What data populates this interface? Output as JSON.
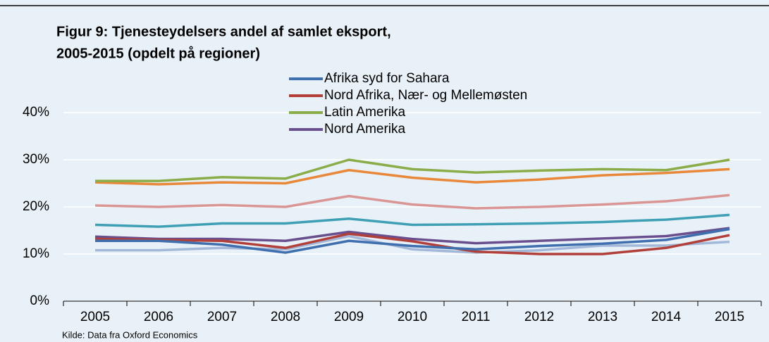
{
  "chart_data": {
    "type": "line",
    "title": [
      "Figur 9: Tjenesteydelsers andel af samlet eksport,",
      "2005-2015 (opdelt på regioner)"
    ],
    "source": "Kilde: Data fra Oxford Economics",
    "categories": [
      "2005",
      "2006",
      "2007",
      "2008",
      "2009",
      "2010",
      "2011",
      "2012",
      "2013",
      "2014",
      "2015"
    ],
    "series": [
      {
        "name": "Afrika syd for Sahara",
        "color": "#3f6fae",
        "values": [
          12.8,
          12.8,
          12,
          10.3,
          12.8,
          11.7,
          11,
          11.7,
          12.2,
          13,
          15.3
        ]
      },
      {
        "name": "Nord Afrika, Nær- og Mellemøsten",
        "color": "#b2403a",
        "values": [
          13.2,
          13,
          12.8,
          11.3,
          14.3,
          12.7,
          10.5,
          10,
          10,
          11.3,
          14
        ]
      },
      {
        "name": "Latin Amerika",
        "color": "#8aad4a",
        "values": [
          25.5,
          25.5,
          26.3,
          26,
          30,
          28,
          27.3,
          27.7,
          28,
          27.8,
          30
        ]
      },
      {
        "name": "Nord Amerika",
        "color": "#6a4f8f",
        "values": [
          13.7,
          13.2,
          13.2,
          12.8,
          14.7,
          13.2,
          12.3,
          12.8,
          13.3,
          13.8,
          15.5
        ]
      },
      {
        "color": "#e8883a",
        "values": [
          25.2,
          24.8,
          25.2,
          25,
          27.8,
          26.2,
          25.2,
          25.8,
          26.7,
          27.2,
          28
        ]
      },
      {
        "color": "#d99694",
        "values": [
          20.3,
          20,
          20.4,
          20,
          22.3,
          20.5,
          19.7,
          20,
          20.5,
          21.2,
          22.5
        ]
      },
      {
        "color": "#3fa0b5",
        "values": [
          16.2,
          15.8,
          16.5,
          16.5,
          17.5,
          16.2,
          16.3,
          16.5,
          16.8,
          17.3,
          18.3
        ]
      },
      {
        "color": "#a3b8d8",
        "values": [
          10.8,
          10.8,
          11.3,
          11,
          13.8,
          11,
          10.3,
          10.8,
          11.8,
          11.8,
          12.6
        ]
      }
    ],
    "ylim": [
      0,
      40
    ],
    "yticks": [
      {
        "value": 0,
        "label": "0%"
      },
      {
        "value": 10,
        "label": "10%"
      },
      {
        "value": 20,
        "label": "20%"
      },
      {
        "value": 30,
        "label": "30%"
      },
      {
        "value": 40,
        "label": "40%"
      }
    ],
    "grid": true
  }
}
